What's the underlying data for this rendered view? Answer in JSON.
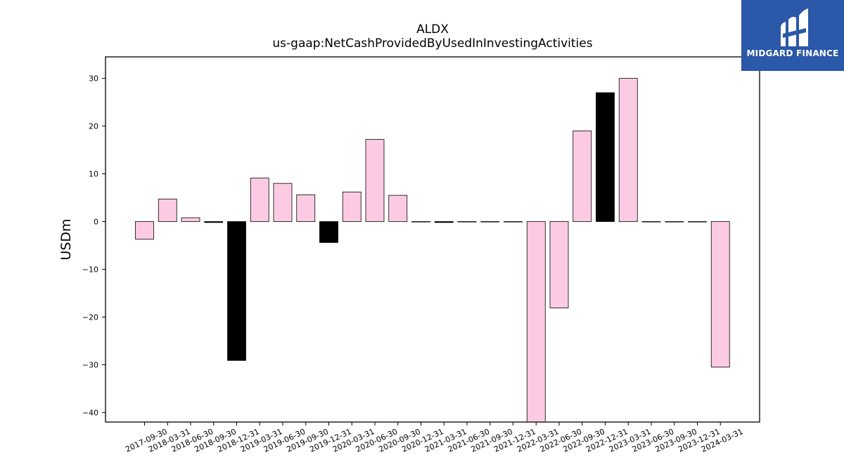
{
  "chart_data": {
    "type": "bar",
    "title": "ALDX",
    "subtitle": "us-gaap:NetCashProvidedByUsedInInvestingActivities",
    "ylabel": "USDm",
    "xlabel": "",
    "ylim": [
      -42,
      34.5
    ],
    "yticks": [
      30,
      20,
      10,
      0,
      -10,
      -20,
      -30,
      -40
    ],
    "grid": false,
    "categories": [
      "2017-09-30",
      "2018-03-31",
      "2018-06-30",
      "2018-09-30",
      "2018-12-31",
      "2019-03-31",
      "2019-06-30",
      "2019-09-30",
      "2019-12-31",
      "2020-03-31",
      "2020-06-30",
      "2020-09-30",
      "2020-12-31",
      "2021-03-31",
      "2021-06-30",
      "2021-09-30",
      "2021-12-31",
      "2022-03-31",
      "2022-06-30",
      "2022-09-30",
      "2022-12-31",
      "2023-03-31",
      "2023-06-30",
      "2023-09-30",
      "2023-12-31",
      "2024-03-31"
    ],
    "values": [
      -3.7,
      4.7,
      0.8,
      -0.2,
      -29.1,
      9.1,
      8.0,
      5.6,
      -4.4,
      6.2,
      17.2,
      5.5,
      0.0,
      -0.2,
      0.0,
      0.0,
      0.0,
      -42.0,
      -18.1,
      19.0,
      27.0,
      30.0,
      0.0,
      0.0,
      0.0,
      -30.5
    ],
    "bar_colors": [
      "#fccbe3",
      "#fccbe3",
      "#fccbe3",
      "#000000",
      "#000000",
      "#fccbe3",
      "#fccbe3",
      "#fccbe3",
      "#000000",
      "#fccbe3",
      "#fccbe3",
      "#fccbe3",
      "#fccbe3",
      "#000000",
      "#fccbe3",
      "#fccbe3",
      "#fccbe3",
      "#fccbe3",
      "#fccbe3",
      "#fccbe3",
      "#000000",
      "#fccbe3",
      "#fccbe3",
      "#fccbe3",
      "#fccbe3",
      "#fccbe3"
    ]
  },
  "logo": {
    "text": "MIDGARD FINANCE",
    "color": "#2b58a8"
  }
}
